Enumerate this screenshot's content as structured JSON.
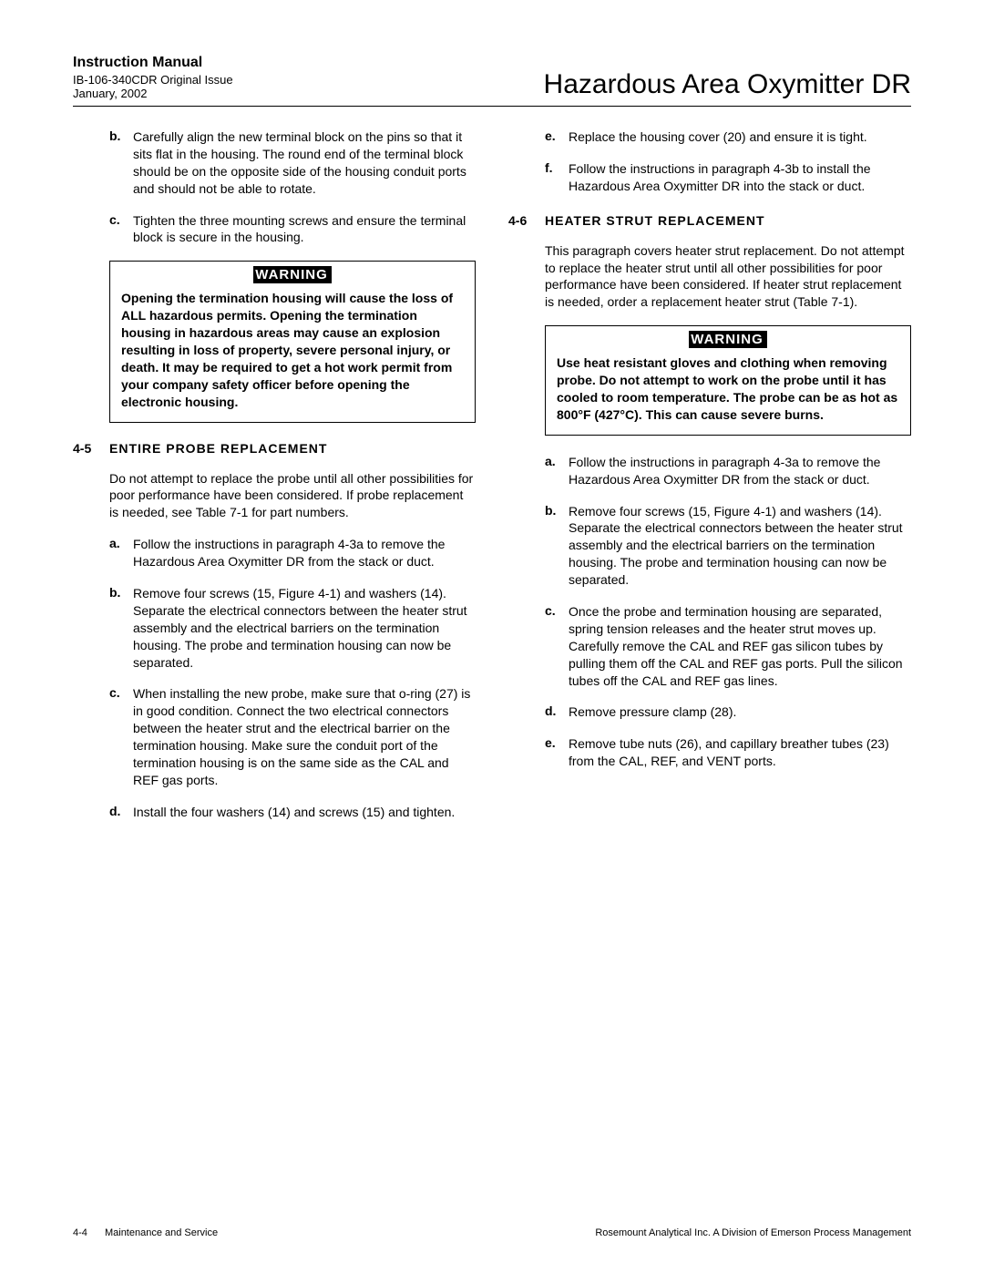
{
  "header": {
    "manual_title": "Instruction Manual",
    "doc_id": "IB-106-340CDR  Original Issue",
    "date": "January, 2002",
    "product": "Hazardous Area Oxymitter DR"
  },
  "col_left": {
    "items_top": [
      {
        "letter": "b.",
        "text": "Carefully align the new terminal block on the pins so that it sits flat in the housing. The round end of the terminal block should be on the opposite side of the housing conduit ports and should not be able to rotate."
      },
      {
        "letter": "c.",
        "text": "Tighten the three mounting screws and ensure the terminal block is secure in the housing."
      }
    ],
    "warning": {
      "label": "WARNING",
      "text": "Opening the termination housing will cause the loss of ALL hazardous permits. Opening the termination housing in hazardous areas may cause an explosion resulting in loss of property, severe personal injury, or death. It may be required to get a hot work permit from your company safety officer before opening the electronic housing."
    },
    "section": {
      "num": "4-5",
      "title": "ENTIRE  PROBE  REPLACEMENT",
      "intro": "Do not attempt to replace the probe until all other possibilities for poor performance have been considered. If probe replacement is needed, see Table 7-1 for part numbers.",
      "items": [
        {
          "letter": "a.",
          "text": "Follow the instructions in paragraph 4-3a to remove the Hazardous Area Oxymitter DR from the stack or duct."
        },
        {
          "letter": "b.",
          "text": "Remove four screws (15, Figure 4-1) and washers (14). Separate the electrical connectors between the heater strut assembly and the electrical barriers on the termination housing. The probe and termination housing can now be separated."
        },
        {
          "letter": "c.",
          "text": "When installing the new probe, make sure that o-ring (27) is in good condition. Connect the two electrical connectors between the heater strut and the electrical barrier on the termination housing. Make sure the conduit port of the termination housing is on the same side as the CAL and REF gas ports."
        },
        {
          "letter": "d.",
          "text": "Install the four washers (14) and screws (15) and tighten."
        }
      ]
    }
  },
  "col_right": {
    "items_top": [
      {
        "letter": "e.",
        "text": "Replace the housing cover (20) and ensure it is tight."
      },
      {
        "letter": "f.",
        "text": "Follow the instructions in paragraph 4-3b to install the Hazardous Area Oxymitter DR into the stack or duct."
      }
    ],
    "section": {
      "num": "4-6",
      "title": "HEATER  STRUT  REPLACEMENT",
      "intro": "This paragraph covers heater strut replacement. Do not attempt to replace the heater strut until all other possibilities for poor performance have been considered. If heater strut replacement is needed, order a replacement heater strut (Table 7-1)."
    },
    "warning": {
      "label": "WARNING",
      "text": "Use heat resistant gloves and clothing when removing probe. Do not attempt to work on the probe until it has cooled to room temperature. The probe can be as hot as 800°F (427°C). This can cause severe burns."
    },
    "items_bottom": [
      {
        "letter": "a.",
        "text": "Follow the instructions in paragraph 4-3a to remove the Hazardous Area Oxymitter DR from the stack or duct."
      },
      {
        "letter": "b.",
        "text": "Remove four screws (15, Figure 4-1) and washers (14). Separate the electrical connectors between the heater strut assembly and the electrical barriers on the termination housing. The probe and termination housing can now be separated."
      },
      {
        "letter": "c.",
        "text": "Once the probe and termination housing are separated, spring tension releases and the heater strut moves up. Carefully remove the CAL and REF gas silicon tubes by pulling them off the CAL and REF gas ports. Pull the silicon tubes off the CAL and REF gas lines."
      },
      {
        "letter": "d.",
        "text": "Remove pressure clamp (28)."
      },
      {
        "letter": "e.",
        "text": "Remove tube nuts (26), and capillary breather tubes (23) from the CAL, REF, and VENT ports."
      }
    ]
  },
  "footer": {
    "page": "4-4",
    "section": "Maintenance and Service",
    "company": "Rosemount Analytical Inc.    A Division of Emerson Process Management"
  }
}
